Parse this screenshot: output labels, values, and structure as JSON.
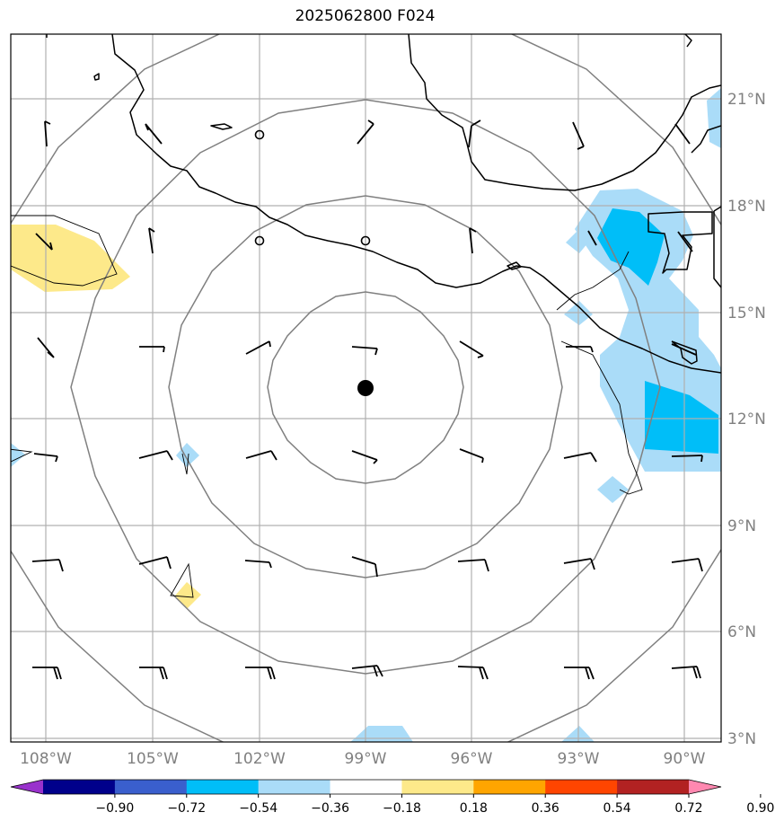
{
  "title": "2025062800 F024",
  "map": {
    "lon_ticks": [
      "108°W",
      "105°W",
      "102°W",
      "99°W",
      "96°W",
      "93°W",
      "90°W"
    ],
    "lat_ticks": [
      "21°N",
      "18°N",
      "15°N",
      "12°N",
      "9°N",
      "6°N",
      "3°N"
    ],
    "colors": {
      "light_blue": "#aadcf8",
      "cyan": "#00bef8",
      "yellow": "#fde98a",
      "coast": "#000000",
      "grid": "#b0b0b0",
      "range_rings": "#808080"
    },
    "center_marker": "storm-center-dot"
  },
  "colorbar": {
    "labels": [
      "−0.90",
      "−0.72",
      "−0.54",
      "−0.36",
      "−0.18",
      "0.18",
      "0.36",
      "0.54",
      "0.72",
      "0.90"
    ],
    "colors": [
      "#9932cc",
      "#00008b",
      "#3a5fcd",
      "#00bef8",
      "#aadcf8",
      "#ffffff",
      "#fde98a",
      "#ffa500",
      "#ff4500",
      "#b22222",
      "#ff88b0"
    ]
  }
}
